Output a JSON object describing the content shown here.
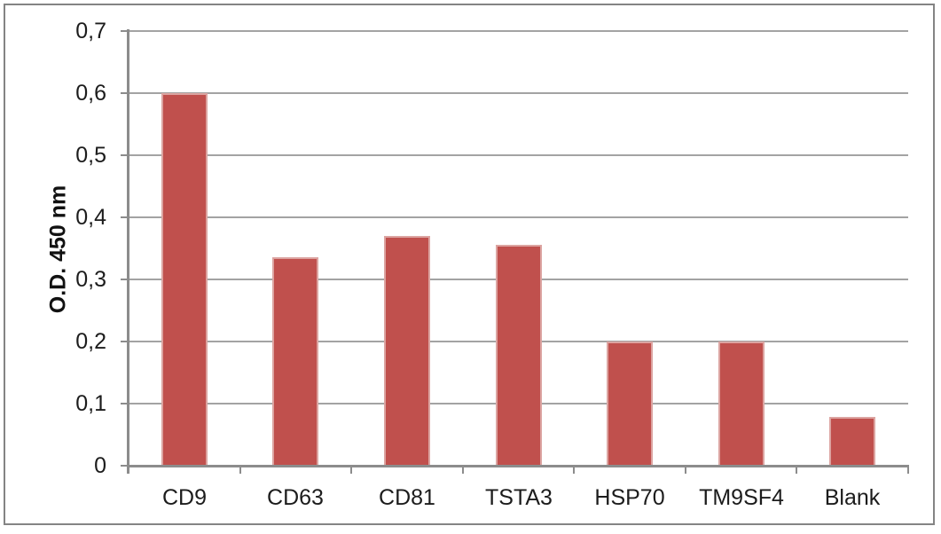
{
  "chart_data": {
    "type": "bar",
    "categories": [
      "CD9",
      "CD63",
      "CD81",
      "TSTA3",
      "HSP70",
      "TM9SF4",
      "Blank"
    ],
    "values": [
      0.6,
      0.335,
      0.37,
      0.355,
      0.2,
      0.2,
      0.078
    ],
    "title": "",
    "xlabel": "",
    "ylabel": "O.D. 450 nm",
    "ylim": [
      0,
      0.7
    ],
    "ytick_step": 0.1,
    "ytick_labels": [
      "0",
      "0,1",
      "0,2",
      "0,3",
      "0,4",
      "0,5",
      "0,6",
      "0,7"
    ],
    "decimal_separator": ",",
    "grid": true,
    "legend": "none",
    "colors": {
      "bar_fill": "#c0504d",
      "bar_border": "#dca4a1",
      "gridline": "#a3a3a3",
      "axis": "#8c8c8c",
      "frame": "#848484",
      "text": "#1c1c1c"
    }
  }
}
